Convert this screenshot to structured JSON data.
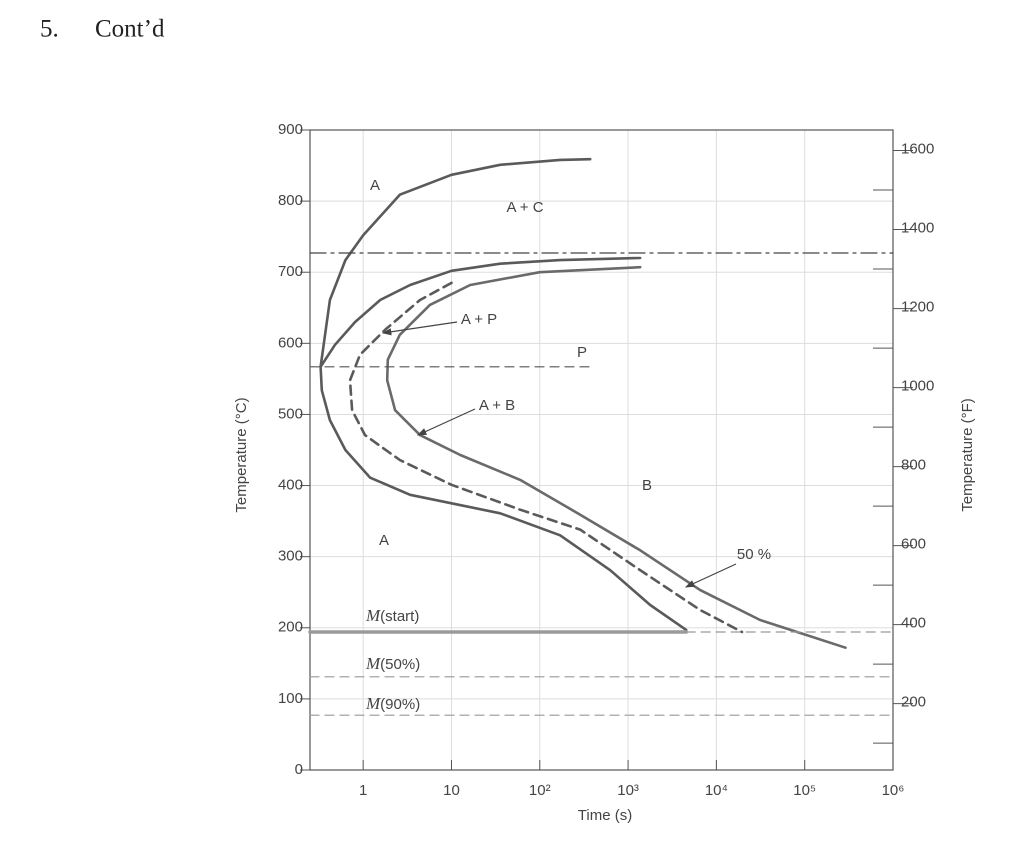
{
  "heading": {
    "number": "5.",
    "text": "Cont’d"
  },
  "chart_data": {
    "type": "line",
    "xlabel": "Time (s)",
    "ylabel": "Temperature (°C)",
    "y2label": "Temperature (°F)",
    "xscale": "log",
    "xlim": [
      0.25,
      1000000
    ],
    "xticks": [
      1,
      10,
      {
        "value": 100,
        "label": "10²"
      },
      {
        "value": 1000,
        "label": "10³"
      },
      {
        "value": 10000,
        "label": "10⁴"
      },
      {
        "value": 100000,
        "label": "10⁵"
      },
      {
        "value": 1000000,
        "label": "10⁶"
      }
    ],
    "ylim": [
      0,
      900
    ],
    "yticks": [
      0,
      100,
      200,
      300,
      400,
      500,
      600,
      700,
      800,
      900
    ],
    "y2lim": [
      32,
      1652
    ],
    "y2ticks": [
      200,
      400,
      600,
      800,
      1000,
      1200,
      1400,
      1600
    ],
    "y2minorticks": [
      100,
      300,
      500,
      700,
      900,
      1100,
      1300,
      1500
    ],
    "grid": true,
    "series": [
      {
        "style": "solid",
        "color": "#5a5a5a",
        "x": [
          0.33,
          0.42,
          0.63,
          1,
          2.6,
          10,
          35.6,
          170,
          372
        ],
        "values": [
          567,
          661,
          717,
          752,
          809,
          837,
          851,
          858,
          859
        ]
      },
      {
        "style": "solid",
        "color": "#5a5a5a",
        "x": [
          1371,
          170,
          35.6,
          10,
          3.4,
          1.56,
          0.81,
          0.48,
          0.33,
          0.34,
          0.42,
          0.63,
          1.2,
          3.4,
          10,
          35.6,
          170,
          627,
          1780,
          4550
        ],
        "values": [
          720,
          717,
          712,
          702,
          682,
          661,
          630,
          598,
          567,
          534,
          492,
          450,
          411,
          387,
          375,
          361,
          330,
          281,
          232,
          197
        ]
      },
      {
        "style": "dashed",
        "color": "#5a5a5a",
        "x": [
          10,
          4.4,
          1.77,
          0.92,
          0.71,
          0.75,
          1.05,
          2.6,
          10,
          60,
          287,
          1371,
          6560,
          19500
        ],
        "values": [
          685,
          661,
          619,
          584,
          548,
          506,
          471,
          436,
          401,
          366,
          338,
          281,
          225,
          194
        ]
      },
      {
        "style": "solid",
        "color": "#6a6a6a",
        "x": [
          1371,
          100,
          16.3,
          5.7,
          2.6,
          1.9,
          1.87,
          2.3,
          4.4,
          12.6,
          60,
          287,
          1371,
          6560,
          31300,
          290000
        ],
        "values": [
          707,
          700,
          682,
          654,
          612,
          577,
          548,
          506,
          471,
          443,
          408,
          359,
          309,
          253,
          211,
          172
        ]
      },
      {
        "style": "dashdot",
        "color": "#444444",
        "x": [
          0.25,
          1000000
        ],
        "values": [
          727,
          727
        ]
      },
      {
        "style": "dashed",
        "color": "#555555",
        "x": [
          0.25,
          372
        ],
        "values": [
          567,
          567
        ]
      },
      {
        "style": "solid",
        "color": "#9a9a9a",
        "x": [
          0.25,
          4550
        ],
        "values": [
          194,
          194
        ]
      },
      {
        "style": "dashed",
        "color": "#999999",
        "x": [
          4550,
          1000000
        ],
        "values": [
          194,
          194
        ]
      },
      {
        "style": "dashed",
        "color": "#999999",
        "x": [
          0.25,
          1000000
        ],
        "values": [
          131,
          131
        ]
      },
      {
        "style": "dashed",
        "color": "#999999",
        "x": [
          0.25,
          1000000
        ],
        "values": [
          77,
          77
        ]
      }
    ],
    "annotations": [
      "A",
      "A + C",
      "A + P",
      "P",
      "A + B",
      "B",
      "A",
      "50 %"
    ],
    "mlines": [
      {
        "symbol": "M",
        "text": "(start)"
      },
      {
        "symbol": "M",
        "text": "(50%)"
      },
      {
        "symbol": "M",
        "text": "(90%)"
      }
    ]
  }
}
